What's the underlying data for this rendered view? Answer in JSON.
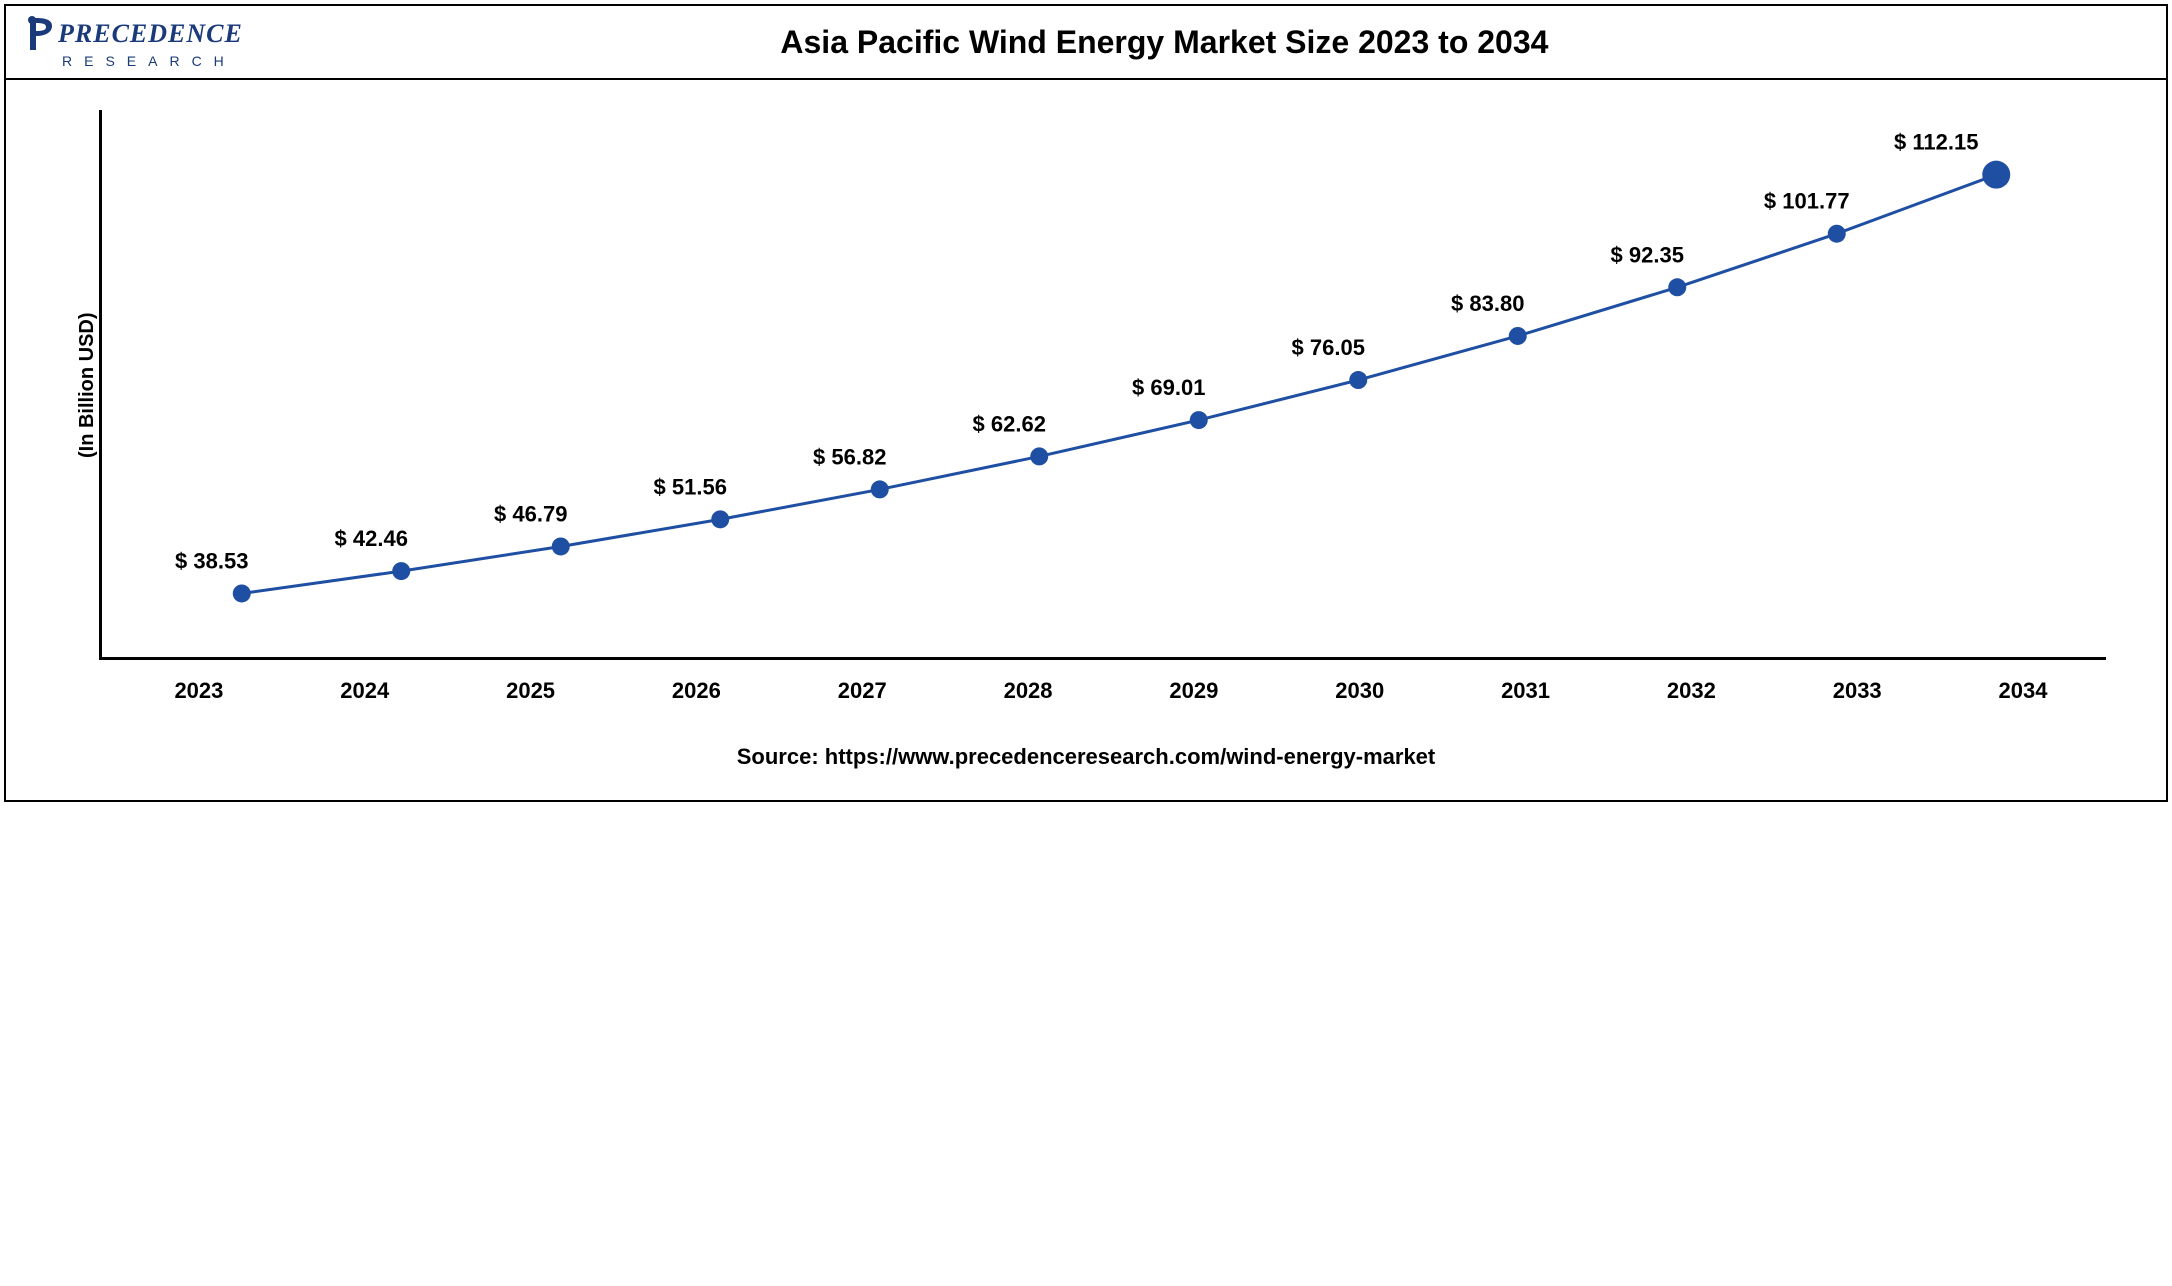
{
  "header": {
    "logo_brand": "PRECEDENCE",
    "logo_sub": "RESEARCH",
    "logo_color": "#1a3a7a",
    "title": "Asia Pacific Wind Energy Market Size 2023 to 2034",
    "title_fontsize": 32,
    "title_color": "#000000"
  },
  "chart": {
    "type": "line",
    "y_axis_label": "(In Billion USD)",
    "y_label_fontsize": 20,
    "years": [
      "2023",
      "2024",
      "2025",
      "2026",
      "2027",
      "2028",
      "2029",
      "2030",
      "2031",
      "2032",
      "2033",
      "2034"
    ],
    "values": [
      38.53,
      42.46,
      46.79,
      51.56,
      56.82,
      62.62,
      69.01,
      76.05,
      83.8,
      92.35,
      101.77,
      112.15
    ],
    "value_prefix": "$ ",
    "x_tick_fontsize": 22,
    "data_label_fontsize": 22,
    "line_color": "#1f4fa3",
    "line_width": 3,
    "marker_color": "#1f4fa3",
    "marker_size": 9,
    "marker_size_last": 14,
    "y_min": 30,
    "y_max": 120,
    "background_color": "#ffffff",
    "axis_color": "#000000"
  },
  "footer": {
    "source_text": "Source: https://www.precedenceresearch.com/wind-energy-market",
    "source_fontsize": 22,
    "source_color": "#000000"
  }
}
